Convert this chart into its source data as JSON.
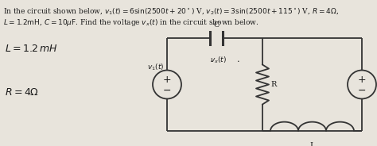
{
  "bg_color": "#e8e4dc",
  "text_color": "#1a1a1a",
  "line_color": "#333333",
  "figsize": [
    4.74,
    1.84
  ],
  "dpi": 100,
  "title_line1": "In the circuit shown below, $v_1(t) = 6\\sin(2500t + 20^\\circ)$ V, $v_2(t) = 3\\sin(2500t + 115^\\circ)$ V, $R = 4\\Omega$,",
  "title_line2": "$L = 1.2\\mathrm{mH}$, $C = 10\\mu\\mathrm{F}$. Find the voltage $v_x(t)$ in the circuit shown below.",
  "note1": "L = 1.2mH",
  "note2": "R = 4Ω"
}
